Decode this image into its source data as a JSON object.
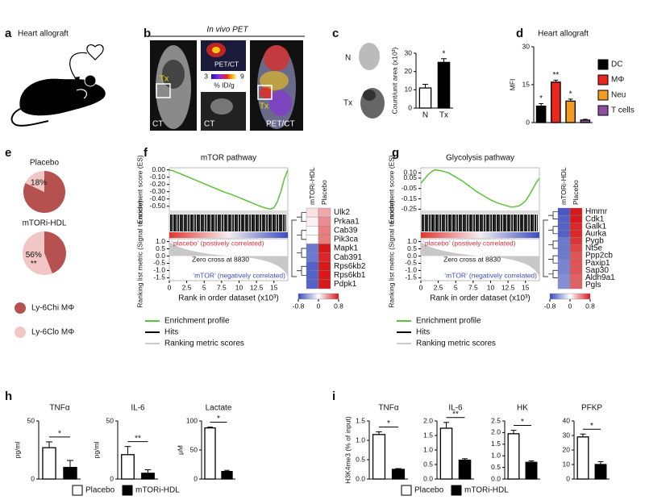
{
  "panels": {
    "a": {
      "label": "a",
      "title": "Heart allograft"
    },
    "b": {
      "label": "b",
      "title": "In vivo PET",
      "images": [
        "CT",
        "PET/CT",
        "CT",
        "PET/CT"
      ],
      "marker": "Tx",
      "colorbar_ticks": [
        3,
        9
      ],
      "colorbar_label": "% ID/g"
    }
  },
  "chart_data": [
    {
      "type": "bar",
      "panel": "c",
      "categories": [
        "N",
        "Tx"
      ],
      "values": [
        11,
        25
      ],
      "errors": [
        2,
        2
      ],
      "colors": [
        "#ffffff",
        "#000000"
      ],
      "ylabel": "Count/unit area (x10³)",
      "ylim": [
        0,
        30
      ],
      "yticks": [
        0,
        10,
        20,
        30
      ],
      "annotations": [
        null,
        "*"
      ]
    },
    {
      "type": "bar",
      "panel": "d",
      "title": "Heart allograft",
      "legend": [
        "DC",
        "MΦ",
        "Neu",
        "T cells"
      ],
      "legend_position": "right",
      "values": [
        6.5,
        16,
        8.5,
        1
      ],
      "errors": [
        1,
        0.8,
        0.8,
        0.3
      ],
      "colors": [
        "#000000",
        "#e8281e",
        "#f39c1f",
        "#8e4fa0"
      ],
      "ylabel": "MFI",
      "ylim": [
        0,
        30
      ],
      "yticks": [
        0,
        15,
        30
      ],
      "annotations": [
        "*",
        "**",
        "*",
        null
      ]
    },
    {
      "type": "pie",
      "panel": "e",
      "title": "Placebo",
      "categories": [
        "Ly-6Chi MΦ",
        "Ly-6Clo MΦ"
      ],
      "values": [
        82,
        18
      ],
      "value_labels": [
        null,
        "18%"
      ],
      "colors": [
        "#b5514f",
        "#f2c6c4"
      ]
    },
    {
      "type": "pie",
      "title": "mTORi-HDL",
      "values": [
        44,
        56
      ],
      "value_labels": [
        null,
        "56%"
      ],
      "annotation": "**",
      "colors": [
        "#b5514f",
        "#f2c6c4"
      ]
    },
    {
      "type": "gsea",
      "panel": "f",
      "title": "mTOR pathway",
      "ylabel": "Enrichment score (ES)",
      "color": "#5cc33a",
      "x": [
        0,
        0.5,
        1,
        1.5,
        2,
        3,
        4,
        5,
        6,
        7,
        8,
        9,
        10,
        11,
        12,
        13,
        14,
        14.5,
        15,
        15.5,
        16,
        16.5,
        17
      ],
      "values": [
        0,
        -0.01,
        -0.03,
        -0.05,
        -0.07,
        -0.11,
        -0.15,
        -0.19,
        -0.23,
        -0.27,
        -0.31,
        -0.34,
        -0.38,
        -0.42,
        -0.46,
        -0.5,
        -0.53,
        -0.54,
        -0.52,
        -0.44,
        -0.3,
        -0.12,
        0
      ],
      "xlim": [
        0,
        17
      ],
      "xticks": [
        0,
        2.5,
        5,
        7.5,
        10,
        12.5,
        15
      ],
      "xlabel": "Rank in order dataset (x10³)",
      "ylim": [
        -0.57,
        0.03
      ],
      "yticks": [
        {
          "value": 0,
          "label": "0.00"
        },
        {
          "value": -0.1,
          "label": "-0.10"
        },
        {
          "value": -0.2,
          "label": "-0.20"
        },
        {
          "value": -0.3,
          "label": "-0.30"
        },
        {
          "value": -0.4,
          "label": "-0.40"
        },
        {
          "value": -0.5,
          "label": "-0.50"
        }
      ],
      "ranking_ylabel": "Ranking list metric (Signal to noise)",
      "ranking_ylim": [
        -1.7,
        1.2
      ],
      "ranking_yticks": [
        {
          "value": 1,
          "label": "1.0"
        },
        {
          "value": 0.5,
          "label": "0.5"
        },
        {
          "value": 0,
          "label": "0.0"
        },
        {
          "value": -0.5,
          "label": "-0.5"
        },
        {
          "value": -1,
          "label": "-1.0"
        },
        {
          "value": -1.5,
          "label": "-1.5"
        }
      ],
      "positive_label": "‘placebo’ (postively correlated)",
      "negative_label": "‘mTOR’ (negatively correlated)",
      "zero_cross": "Zero cross at 8830",
      "legend": [
        "Enrichment profile",
        "Hits",
        "Ranking metric scores"
      ],
      "heatmap": {
        "columns": [
          "mTORi-HDL",
          "Placebo"
        ],
        "rows": [
          "Ulk2",
          "Prkaa1",
          "Cab39",
          "Pik3ca",
          "Mapk1",
          "Cab391",
          "Rps6kb2",
          "Rps6kb1",
          "Pdpk1"
        ],
        "values": [
          [
            0.1,
            0.3
          ],
          [
            0.05,
            0.4
          ],
          [
            0,
            0.45
          ],
          [
            0,
            0.45
          ],
          [
            -0.6,
            0.8
          ],
          [
            -0.6,
            0.75
          ],
          [
            -0.7,
            0.8
          ],
          [
            -0.7,
            0.8
          ],
          [
            -0.7,
            0.8
          ]
        ],
        "ticks": [
          -0.8,
          0,
          0.8
        ]
      }
    },
    {
      "type": "gsea",
      "panel": "g",
      "title": "Glycolysis pathway",
      "ylabel": "Enrichment score (ES)",
      "color": "#5cc33a",
      "x": [
        0,
        0.5,
        1,
        1.5,
        2,
        3,
        4,
        5,
        6,
        7,
        8,
        9,
        10,
        11,
        12,
        13,
        14,
        14.5,
        15,
        15.5,
        16,
        16.5,
        17
      ],
      "values": [
        0,
        0.04,
        0.08,
        0.11,
        0.13,
        0.12,
        0.1,
        0.06,
        0.02,
        -0.03,
        -0.08,
        -0.12,
        -0.16,
        -0.19,
        -0.21,
        -0.23,
        -0.22,
        -0.2,
        -0.17,
        -0.12,
        -0.06,
        0,
        0.05
      ],
      "xlim": [
        0,
        17
      ],
      "xticks": [
        0,
        2.5,
        5,
        7.5,
        10,
        12.5,
        15
      ],
      "xlabel": "Rank in order dataset (x10³)",
      "ylim": [
        -0.27,
        0.15
      ],
      "yticks": [
        {
          "value": 0.1,
          "label": "0.10"
        },
        {
          "value": 0.05,
          "label": "0.05"
        },
        {
          "value": -0.05,
          "label": "-0.05"
        },
        {
          "value": -0.15,
          "label": "-0.15"
        },
        {
          "value": -0.25,
          "label": "-0.25"
        }
      ],
      "ranking_ylabel": "Ranking list metric (Signal to noise)",
      "ranking_ylim": [
        -1.7,
        1.2
      ],
      "ranking_yticks": [
        {
          "value": 1,
          "label": "1.0"
        },
        {
          "value": 0.5,
          "label": "0.5"
        },
        {
          "value": 0,
          "label": "0.0"
        },
        {
          "value": -0.5,
          "label": "-0.5"
        },
        {
          "value": -1,
          "label": "-1.0"
        },
        {
          "value": -1.5,
          "label": "-1.5"
        }
      ],
      "positive_label": "‘placebo’ (postively correlated)",
      "negative_label": "‘mTOR’ (negatively correlated)",
      "zero_cross": "Zero cross at 8830",
      "legend": [
        "Enrichment profile",
        "Hits",
        "Ranking metric scores"
      ],
      "heatmap": {
        "columns": [
          "mTORi-HDL",
          "Placebo"
        ],
        "rows": [
          "Hmmr",
          "Cdk1",
          "Galk1",
          "Aurka",
          "Pygb",
          "Nt5e",
          "Ppp2cb",
          "Paxip1",
          "Sap30",
          "Aldh9a1",
          "Pgls"
        ],
        "values": [
          [
            -0.75,
            0.8
          ],
          [
            -0.7,
            0.8
          ],
          [
            -0.7,
            0.75
          ],
          [
            -0.7,
            0.75
          ],
          [
            -0.6,
            0.7
          ],
          [
            -0.6,
            0.65
          ],
          [
            -0.6,
            0.6
          ],
          [
            -0.55,
            0.6
          ],
          [
            -0.55,
            0.6
          ],
          [
            -0.5,
            0.55
          ],
          [
            -0.5,
            0.55
          ]
        ],
        "ticks": [
          -0.8,
          0,
          0.8
        ]
      }
    },
    {
      "type": "bar",
      "panel": "h",
      "title": "TNFα",
      "ylabel": "pg/ml",
      "values": [
        27,
        10
      ],
      "errors": [
        5,
        6
      ],
      "colors": [
        "#ffffff",
        "#000000"
      ],
      "ylim": [
        0,
        50
      ],
      "yticks": [
        0,
        50
      ],
      "significance": "*",
      "legend": [
        "Placebo",
        "mTORi-HDL"
      ],
      "legend_position": "bottom"
    },
    {
      "type": "bar",
      "title": "IL-6",
      "ylabel": "pg/ml",
      "values": [
        21,
        5
      ],
      "errors": [
        7,
        3
      ],
      "colors": [
        "#ffffff",
        "#000000"
      ],
      "ylim": [
        0,
        50
      ],
      "yticks": [
        0,
        50
      ],
      "significance": "**"
    },
    {
      "type": "bar",
      "title": "Lactate",
      "ylabel": "μM",
      "values": [
        88,
        13
      ],
      "errors": [
        1.5,
        2
      ],
      "colors": [
        "#ffffff",
        "#000000"
      ],
      "ylim": [
        0,
        100
      ],
      "yticks": [
        0,
        50,
        100
      ],
      "significance": "*"
    },
    {
      "type": "bar",
      "panel": "i",
      "title": "TNFα",
      "ylabel": "H3K4me3 (% of input)",
      "values": [
        1.15,
        0.25
      ],
      "errors": [
        0.07,
        0.02
      ],
      "colors": [
        "#ffffff",
        "#000000"
      ],
      "ylim": [
        0,
        1.5
      ],
      "yticks": [
        {
          "value": 0,
          "label": "0.0"
        },
        {
          "value": 0.5,
          "label": "0.5"
        },
        {
          "value": 1,
          "label": "1.0"
        },
        {
          "value": 1.5,
          "label": "1.5"
        }
      ],
      "significance": "*",
      "legend": [
        "Placebo",
        "mTORi-HDL"
      ],
      "legend_position": "bottom"
    },
    {
      "type": "bar",
      "title": "IL-6",
      "values": [
        1.75,
        0.65
      ],
      "errors": [
        0.2,
        0.05
      ],
      "colors": [
        "#ffffff",
        "#000000"
      ],
      "ylim": [
        0,
        2
      ],
      "yticks": [
        {
          "value": 0,
          "label": "0.0"
        },
        {
          "value": 0.5,
          "label": "0.5"
        },
        {
          "value": 1,
          "label": "1.0"
        },
        {
          "value": 1.5,
          "label": "1.5"
        },
        {
          "value": 2,
          "label": "2.0"
        }
      ],
      "significance": "**"
    },
    {
      "type": "bar",
      "title": "HK",
      "values": [
        1.95,
        0.72
      ],
      "errors": [
        0.15,
        0.06
      ],
      "colors": [
        "#ffffff",
        "#000000"
      ],
      "ylim": [
        0,
        2.5
      ],
      "yticks": [
        {
          "value": 0,
          "label": "0.0"
        },
        {
          "value": 0.5,
          "label": "0.5"
        },
        {
          "value": 1,
          "label": "1.0"
        },
        {
          "value": 1.5,
          "label": "1.5"
        },
        {
          "value": 2,
          "label": "2.0"
        },
        {
          "value": 2.5,
          "label": "2.5"
        }
      ],
      "significance": "*"
    },
    {
      "type": "bar",
      "title": "PFKP",
      "values": [
        29,
        10
      ],
      "errors": [
        2,
        2
      ],
      "colors": [
        "#ffffff",
        "#000000"
      ],
      "ylim": [
        0,
        40
      ],
      "yticks": [
        0,
        10,
        20,
        30,
        40
      ],
      "significance": "*"
    }
  ]
}
